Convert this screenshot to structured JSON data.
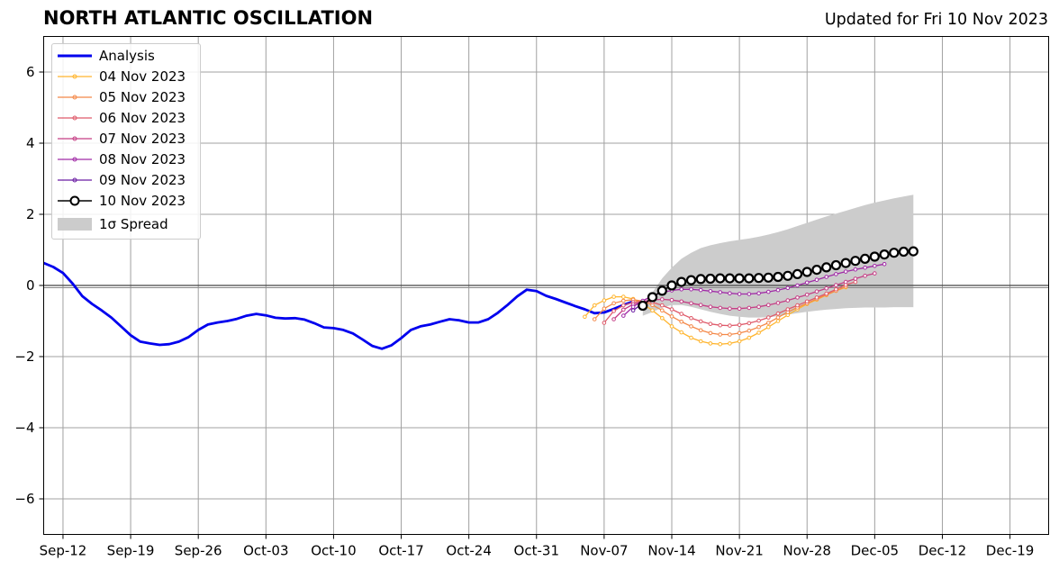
{
  "header": {
    "title": "NORTH ATLANTIC OSCILLATION",
    "updated": "Updated for Fri 10 Nov 2023"
  },
  "chart_data": {
    "type": "line",
    "title": "NORTH ATLANTIC OSCILLATION",
    "xlabel": "",
    "ylabel": "",
    "ylim": [
      -7,
      7
    ],
    "xlim": [
      "2023-09-10",
      "2023-12-23"
    ],
    "grid": true,
    "legend_position": "upper-left",
    "x_ticks": [
      "Sep-12",
      "Sep-19",
      "Sep-26",
      "Oct-03",
      "Oct-10",
      "Oct-17",
      "Oct-24",
      "Oct-31",
      "Nov-07",
      "Nov-14",
      "Nov-21",
      "Nov-28",
      "Dec-05",
      "Dec-12",
      "Dec-19"
    ],
    "x_tick_dates": [
      "2023-09-12",
      "2023-09-19",
      "2023-09-26",
      "2023-10-03",
      "2023-10-10",
      "2023-10-17",
      "2023-10-24",
      "2023-10-31",
      "2023-11-07",
      "2023-11-14",
      "2023-11-21",
      "2023-11-28",
      "2023-12-05",
      "2023-12-12",
      "2023-12-19"
    ],
    "y_ticks": [
      -6,
      -4,
      -2,
      0,
      2,
      4,
      6
    ],
    "y_tick_labels": [
      "−6",
      "−4",
      "−2",
      "0",
      "2",
      "4",
      "6"
    ],
    "analysis": {
      "name": "Analysis",
      "color": "#0000ee",
      "start_date": "2023-09-10",
      "values": [
        0.63,
        0.52,
        0.35,
        0.05,
        -0.3,
        -0.52,
        -0.7,
        -0.9,
        -1.15,
        -1.4,
        -1.58,
        -1.63,
        -1.67,
        -1.65,
        -1.58,
        -1.45,
        -1.25,
        -1.1,
        -1.04,
        -1.0,
        -0.94,
        -0.85,
        -0.8,
        -0.84,
        -0.91,
        -0.93,
        -0.92,
        -0.96,
        -1.06,
        -1.18,
        -1.2,
        -1.25,
        -1.35,
        -1.52,
        -1.7,
        -1.78,
        -1.68,
        -1.48,
        -1.25,
        -1.15,
        -1.1,
        -1.02,
        -0.95,
        -0.98,
        -1.04,
        -1.04,
        -0.95,
        -0.77,
        -0.55,
        -0.31,
        -0.12,
        -0.16,
        -0.29,
        -0.38,
        -0.48,
        -0.58,
        -0.67,
        -0.78,
        -0.76,
        -0.66,
        -0.55,
        -0.45
      ]
    },
    "forecasts": [
      {
        "name": "04 Nov 2023",
        "color": "#ffb52e",
        "start_date": "2023-11-05",
        "values": [
          -0.88,
          -0.56,
          -0.42,
          -0.32,
          -0.32,
          -0.38,
          -0.52,
          -0.7,
          -0.92,
          -1.15,
          -1.32,
          -1.47,
          -1.57,
          -1.63,
          -1.65,
          -1.63,
          -1.57,
          -1.47,
          -1.33,
          -1.17,
          -1.0,
          -0.83,
          -0.67,
          -0.52,
          -0.4,
          -0.27,
          -0.15,
          -0.05
        ]
      },
      {
        "name": "05 Nov 2023",
        "color": "#f48848",
        "start_date": "2023-11-06",
        "values": [
          -0.95,
          -0.65,
          -0.5,
          -0.43,
          -0.4,
          -0.44,
          -0.55,
          -0.7,
          -0.87,
          -1.02,
          -1.15,
          -1.26,
          -1.34,
          -1.38,
          -1.38,
          -1.34,
          -1.27,
          -1.17,
          -1.05,
          -0.9,
          -0.75,
          -0.62,
          -0.5,
          -0.38,
          -0.26,
          -0.15,
          -0.03
        ]
      },
      {
        "name": "06 Nov 2023",
        "color": "#df5a6a",
        "start_date": "2023-11-07",
        "values": [
          -1.05,
          -0.72,
          -0.56,
          -0.47,
          -0.44,
          -0.47,
          -0.56,
          -0.67,
          -0.8,
          -0.92,
          -1.01,
          -1.08,
          -1.12,
          -1.13,
          -1.11,
          -1.06,
          -0.99,
          -0.9,
          -0.79,
          -0.67,
          -0.56,
          -0.45,
          -0.34,
          -0.23,
          -0.11,
          0.02,
          0.1
        ]
      },
      {
        "name": "07 Nov 2023",
        "color": "#c53e85",
        "start_date": "2023-11-08",
        "values": [
          -0.95,
          -0.68,
          -0.53,
          -0.45,
          -0.41,
          -0.39,
          -0.41,
          -0.45,
          -0.5,
          -0.55,
          -0.6,
          -0.63,
          -0.65,
          -0.65,
          -0.63,
          -0.6,
          -0.55,
          -0.49,
          -0.42,
          -0.34,
          -0.26,
          -0.17,
          -0.08,
          0.01,
          0.1,
          0.19,
          0.27,
          0.34
        ]
      },
      {
        "name": "08 Nov 2023",
        "color": "#a02ba6",
        "start_date": "2023-11-09",
        "values": [
          -0.85,
          -0.6,
          -0.43,
          -0.29,
          -0.2,
          -0.14,
          -0.11,
          -0.11,
          -0.13,
          -0.16,
          -0.19,
          -0.22,
          -0.24,
          -0.24,
          -0.22,
          -0.18,
          -0.13,
          -0.07,
          0.0,
          0.08,
          0.16,
          0.24,
          0.32,
          0.39,
          0.45,
          0.5,
          0.55,
          0.6
        ]
      },
      {
        "name": "09 Nov 2023",
        "color": "#6a1ca3",
        "start_date": "2023-11-10",
        "values": [
          -0.7,
          -0.5
        ]
      }
    ],
    "latest_forecast": {
      "name": "10 Nov 2023",
      "color": "#000000",
      "start_date": "2023-11-11",
      "values": [
        -0.57,
        -0.33,
        -0.15,
        0.0,
        0.1,
        0.15,
        0.18,
        0.19,
        0.2,
        0.2,
        0.2,
        0.2,
        0.21,
        0.22,
        0.24,
        0.27,
        0.32,
        0.38,
        0.44,
        0.51,
        0.57,
        0.63,
        0.69,
        0.75,
        0.81,
        0.87,
        0.92,
        0.95,
        0.96
      ]
    },
    "spread": {
      "name": "1σ Spread",
      "color": "#cccccc",
      "start_date": "2023-11-11",
      "upper": [
        -0.55,
        -0.2,
        0.2,
        0.5,
        0.75,
        0.92,
        1.05,
        1.13,
        1.19,
        1.24,
        1.28,
        1.32,
        1.37,
        1.43,
        1.5,
        1.58,
        1.67,
        1.76,
        1.85,
        1.94,
        2.02,
        2.1,
        2.18,
        2.26,
        2.33,
        2.39,
        2.45,
        2.5,
        2.55
      ],
      "lower": [
        -0.85,
        -0.75,
        -0.62,
        -0.55,
        -0.55,
        -0.6,
        -0.67,
        -0.74,
        -0.8,
        -0.85,
        -0.88,
        -0.9,
        -0.9,
        -0.89,
        -0.86,
        -0.82,
        -0.78,
        -0.74,
        -0.71,
        -0.68,
        -0.66,
        -0.64,
        -0.63,
        -0.62,
        -0.62,
        -0.62,
        -0.61,
        -0.61,
        -0.61
      ]
    }
  }
}
